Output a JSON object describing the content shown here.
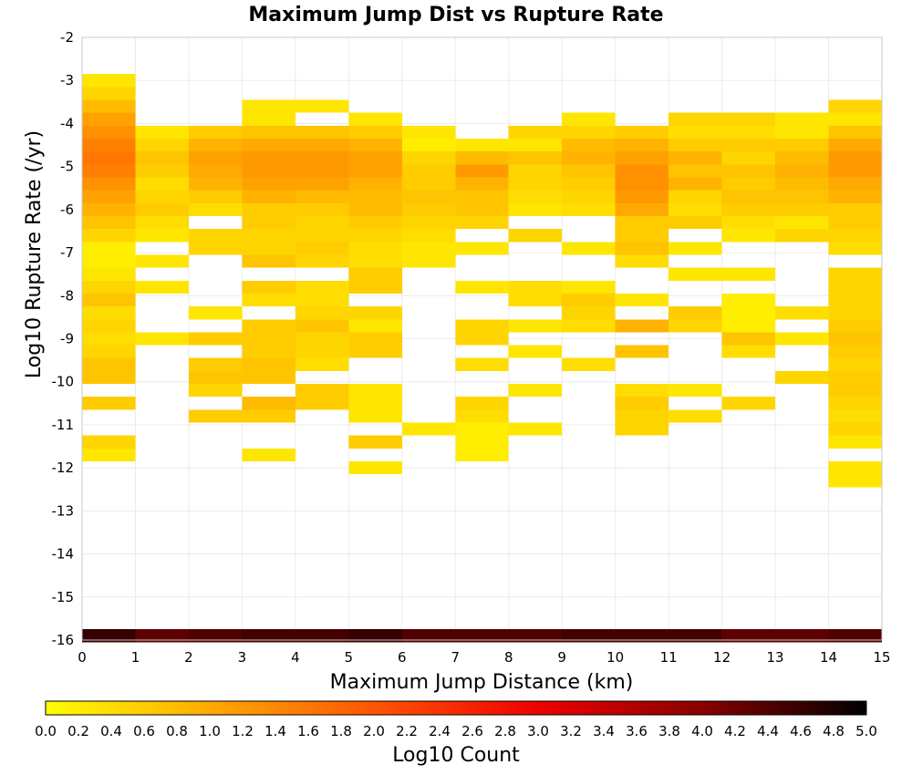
{
  "chart_data": {
    "type": "heatmap",
    "title": "Maximum Jump Dist vs Rupture Rate",
    "xlabel": "Maximum Jump Distance (km)",
    "ylabel": "Log10 Rupture Rate (/yr)",
    "xlim": [
      0,
      15
    ],
    "ylim": [
      -16,
      -2
    ],
    "x_ticks": [
      "0",
      "1",
      "2",
      "3",
      "4",
      "5",
      "6",
      "7",
      "8",
      "9",
      "10",
      "11",
      "12",
      "13",
      "14",
      "15"
    ],
    "y_ticks": [
      "-2",
      "-3",
      "-4",
      "-5",
      "-6",
      "-7",
      "-8",
      "-9",
      "-10",
      "-11",
      "-12",
      "-13",
      "-14",
      "-15",
      "-16"
    ],
    "grid": true,
    "bin_width_x": 1,
    "bin_height_y": 0.3,
    "colorbar": {
      "label": "Log10 Count",
      "range": [
        0,
        5
      ],
      "tick_labels": [
        "0.0",
        "0.2",
        "0.4",
        "0.6",
        "0.8",
        "1.0",
        "1.2",
        "1.4",
        "1.6",
        "1.8",
        "2.0",
        "2.2",
        "2.4",
        "2.6",
        "2.8",
        "3.0",
        "3.2",
        "3.4",
        "3.6",
        "3.8",
        "4.0",
        "4.2",
        "4.4",
        "4.6",
        "4.8",
        "5.0"
      ],
      "colors": [
        "#ffff00",
        "#ffaa00",
        "#ff5500",
        "#ee0000",
        "#880000",
        "#000000"
      ]
    },
    "columns": [
      {
        "x": 0,
        "cells": [
          [
            -3.0,
            0.3
          ],
          [
            -3.3,
            0.5
          ],
          [
            -3.6,
            0.8
          ],
          [
            -3.9,
            1.1
          ],
          [
            -4.2,
            1.3
          ],
          [
            -4.5,
            1.5
          ],
          [
            -4.8,
            1.6
          ],
          [
            -5.1,
            1.5
          ],
          [
            -5.4,
            1.3
          ],
          [
            -5.7,
            1.1
          ],
          [
            -6.0,
            0.9
          ],
          [
            -6.3,
            0.7
          ],
          [
            -6.6,
            0.5
          ],
          [
            -6.9,
            0.2
          ],
          [
            -7.2,
            0.2
          ],
          [
            -7.5,
            0.3
          ],
          [
            -7.8,
            0.5
          ],
          [
            -8.1,
            0.7
          ],
          [
            -8.4,
            0.4
          ],
          [
            -8.7,
            0.5
          ],
          [
            -9.0,
            0.4
          ],
          [
            -9.3,
            0.5
          ],
          [
            -9.6,
            0.7
          ],
          [
            -9.9,
            0.7
          ],
          [
            -10.5,
            0.6
          ],
          [
            -11.4,
            0.5
          ],
          [
            -11.7,
            0.3
          ],
          [
            -15.9,
            4.6
          ]
        ]
      },
      {
        "x": 1,
        "cells": [
          [
            -4.2,
            0.3
          ],
          [
            -4.5,
            0.5
          ],
          [
            -4.8,
            0.7
          ],
          [
            -5.1,
            0.6
          ],
          [
            -5.4,
            0.4
          ],
          [
            -5.7,
            0.5
          ],
          [
            -6.0,
            0.6
          ],
          [
            -6.3,
            0.4
          ],
          [
            -6.6,
            0.3
          ],
          [
            -7.2,
            0.3
          ],
          [
            -7.8,
            0.3
          ],
          [
            -9.0,
            0.3
          ],
          [
            -15.9,
            4.3
          ]
        ]
      },
      {
        "x": 2,
        "cells": [
          [
            -4.2,
            0.6
          ],
          [
            -4.5,
            0.9
          ],
          [
            -4.8,
            1.1
          ],
          [
            -5.1,
            1.0
          ],
          [
            -5.4,
            0.9
          ],
          [
            -5.7,
            0.6
          ],
          [
            -6.0,
            0.4
          ],
          [
            -6.6,
            0.5
          ],
          [
            -6.9,
            0.5
          ],
          [
            -8.4,
            0.3
          ],
          [
            -9.0,
            0.6
          ],
          [
            -9.6,
            0.6
          ],
          [
            -9.9,
            0.7
          ],
          [
            -10.2,
            0.5
          ],
          [
            -10.8,
            0.6
          ],
          [
            -15.9,
            4.4
          ]
        ]
      },
      {
        "x": 3,
        "cells": [
          [
            -3.6,
            0.3
          ],
          [
            -3.9,
            0.3
          ],
          [
            -4.2,
            0.7
          ],
          [
            -4.5,
            1.0
          ],
          [
            -4.8,
            1.2
          ],
          [
            -5.1,
            1.2
          ],
          [
            -5.4,
            1.1
          ],
          [
            -5.7,
            0.9
          ],
          [
            -6.0,
            0.6
          ],
          [
            -6.3,
            0.6
          ],
          [
            -6.6,
            0.5
          ],
          [
            -6.9,
            0.5
          ],
          [
            -7.2,
            0.7
          ],
          [
            -7.8,
            0.6
          ],
          [
            -8.1,
            0.4
          ],
          [
            -8.7,
            0.6
          ],
          [
            -9.0,
            0.6
          ],
          [
            -9.3,
            0.6
          ],
          [
            -9.6,
            0.7
          ],
          [
            -9.9,
            0.7
          ],
          [
            -10.5,
            0.8
          ],
          [
            -10.8,
            0.6
          ],
          [
            -11.7,
            0.3
          ],
          [
            -15.9,
            4.5
          ]
        ]
      },
      {
        "x": 4,
        "cells": [
          [
            -3.6,
            0.3
          ],
          [
            -4.2,
            0.7
          ],
          [
            -4.5,
            1.0
          ],
          [
            -4.8,
            1.2
          ],
          [
            -5.1,
            1.2
          ],
          [
            -5.4,
            1.1
          ],
          [
            -5.7,
            0.8
          ],
          [
            -6.0,
            0.6
          ],
          [
            -6.3,
            0.5
          ],
          [
            -6.6,
            0.5
          ],
          [
            -6.9,
            0.6
          ],
          [
            -7.2,
            0.5
          ],
          [
            -7.8,
            0.4
          ],
          [
            -8.1,
            0.4
          ],
          [
            -8.4,
            0.5
          ],
          [
            -8.7,
            0.7
          ],
          [
            -9.0,
            0.5
          ],
          [
            -9.3,
            0.5
          ],
          [
            -9.6,
            0.4
          ],
          [
            -10.2,
            0.6
          ],
          [
            -10.5,
            0.6
          ],
          [
            -15.9,
            4.5
          ]
        ]
      },
      {
        "x": 5,
        "cells": [
          [
            -3.9,
            0.3
          ],
          [
            -4.2,
            0.6
          ],
          [
            -4.5,
            0.9
          ],
          [
            -4.8,
            1.1
          ],
          [
            -5.1,
            1.1
          ],
          [
            -5.4,
            0.9
          ],
          [
            -5.7,
            0.8
          ],
          [
            -6.0,
            0.8
          ],
          [
            -6.3,
            0.6
          ],
          [
            -6.6,
            0.5
          ],
          [
            -6.9,
            0.4
          ],
          [
            -7.2,
            0.4
          ],
          [
            -7.5,
            0.6
          ],
          [
            -7.8,
            0.6
          ],
          [
            -8.4,
            0.5
          ],
          [
            -8.7,
            0.3
          ],
          [
            -9.0,
            0.6
          ],
          [
            -9.3,
            0.6
          ],
          [
            -10.2,
            0.3
          ],
          [
            -10.5,
            0.3
          ],
          [
            -10.8,
            0.3
          ],
          [
            -11.4,
            0.6
          ],
          [
            -12.0,
            0.3
          ],
          [
            -15.9,
            4.6
          ]
        ]
      },
      {
        "x": 6,
        "cells": [
          [
            -4.2,
            0.3
          ],
          [
            -4.5,
            0.2
          ],
          [
            -4.8,
            0.5
          ],
          [
            -5.1,
            0.6
          ],
          [
            -5.4,
            0.6
          ],
          [
            -5.7,
            0.7
          ],
          [
            -6.0,
            0.6
          ],
          [
            -6.3,
            0.5
          ],
          [
            -6.6,
            0.4
          ],
          [
            -6.9,
            0.3
          ],
          [
            -7.2,
            0.3
          ],
          [
            -11.1,
            0.3
          ],
          [
            -15.9,
            4.4
          ]
        ]
      },
      {
        "x": 7,
        "cells": [
          [
            -4.5,
            0.3
          ],
          [
            -4.8,
            0.8
          ],
          [
            -5.1,
            1.2
          ],
          [
            -5.4,
            0.9
          ],
          [
            -5.7,
            0.7
          ],
          [
            -6.0,
            0.7
          ],
          [
            -6.3,
            0.5
          ],
          [
            -6.9,
            0.3
          ],
          [
            -7.8,
            0.3
          ],
          [
            -8.7,
            0.5
          ],
          [
            -9.0,
            0.5
          ],
          [
            -9.6,
            0.4
          ],
          [
            -10.5,
            0.5
          ],
          [
            -10.8,
            0.4
          ],
          [
            -11.1,
            0.2
          ],
          [
            -11.4,
            0.2
          ],
          [
            -11.7,
            0.2
          ],
          [
            -15.9,
            4.4
          ]
        ]
      },
      {
        "x": 8,
        "cells": [
          [
            -4.2,
            0.5
          ],
          [
            -4.5,
            0.3
          ],
          [
            -4.8,
            0.7
          ],
          [
            -5.1,
            0.5
          ],
          [
            -5.4,
            0.5
          ],
          [
            -5.7,
            0.4
          ],
          [
            -6.0,
            0.3
          ],
          [
            -6.6,
            0.5
          ],
          [
            -7.8,
            0.4
          ],
          [
            -8.1,
            0.4
          ],
          [
            -8.7,
            0.3
          ],
          [
            -9.3,
            0.3
          ],
          [
            -10.2,
            0.3
          ],
          [
            -11.1,
            0.3
          ],
          [
            -15.9,
            4.4
          ]
        ]
      },
      {
        "x": 9,
        "cells": [
          [
            -3.9,
            0.3
          ],
          [
            -4.2,
            0.5
          ],
          [
            -4.5,
            0.8
          ],
          [
            -4.8,
            0.9
          ],
          [
            -5.1,
            0.7
          ],
          [
            -5.4,
            0.6
          ],
          [
            -5.7,
            0.5
          ],
          [
            -6.0,
            0.4
          ],
          [
            -6.9,
            0.3
          ],
          [
            -7.8,
            0.3
          ],
          [
            -8.1,
            0.6
          ],
          [
            -8.4,
            0.5
          ],
          [
            -8.7,
            0.4
          ],
          [
            -9.6,
            0.4
          ],
          [
            -15.9,
            4.5
          ]
        ]
      },
      {
        "x": 10,
        "cells": [
          [
            -4.2,
            0.6
          ],
          [
            -4.5,
            0.9
          ],
          [
            -4.8,
            1.1
          ],
          [
            -5.1,
            1.3
          ],
          [
            -5.4,
            1.3
          ],
          [
            -5.7,
            1.2
          ],
          [
            -6.0,
            1.0
          ],
          [
            -6.3,
            0.6
          ],
          [
            -6.6,
            0.6
          ],
          [
            -6.9,
            0.7
          ],
          [
            -7.2,
            0.4
          ],
          [
            -8.1,
            0.3
          ],
          [
            -8.7,
            0.9
          ],
          [
            -9.3,
            0.7
          ],
          [
            -10.2,
            0.4
          ],
          [
            -10.5,
            0.6
          ],
          [
            -10.8,
            0.5
          ],
          [
            -11.1,
            0.5
          ],
          [
            -15.9,
            4.5
          ]
        ]
      },
      {
        "x": 11,
        "cells": [
          [
            -3.9,
            0.5
          ],
          [
            -4.2,
            0.4
          ],
          [
            -4.5,
            0.6
          ],
          [
            -4.8,
            0.9
          ],
          [
            -5.1,
            0.7
          ],
          [
            -5.4,
            0.9
          ],
          [
            -5.7,
            0.5
          ],
          [
            -6.0,
            0.4
          ],
          [
            -6.3,
            0.6
          ],
          [
            -6.9,
            0.3
          ],
          [
            -7.5,
            0.3
          ],
          [
            -8.4,
            0.6
          ],
          [
            -8.7,
            0.5
          ],
          [
            -10.2,
            0.3
          ],
          [
            -10.8,
            0.4
          ],
          [
            -15.9,
            4.5
          ]
        ]
      },
      {
        "x": 12,
        "cells": [
          [
            -3.9,
            0.5
          ],
          [
            -4.2,
            0.4
          ],
          [
            -4.5,
            0.6
          ],
          [
            -4.8,
            0.5
          ],
          [
            -5.1,
            0.7
          ],
          [
            -5.4,
            0.6
          ],
          [
            -5.7,
            0.7
          ],
          [
            -6.0,
            0.6
          ],
          [
            -6.3,
            0.4
          ],
          [
            -6.6,
            0.3
          ],
          [
            -7.5,
            0.3
          ],
          [
            -8.1,
            0.2
          ],
          [
            -8.4,
            0.2
          ],
          [
            -8.7,
            0.2
          ],
          [
            -9.0,
            0.7
          ],
          [
            -9.3,
            0.4
          ],
          [
            -10.5,
            0.5
          ],
          [
            -15.9,
            4.3
          ]
        ]
      },
      {
        "x": 13,
        "cells": [
          [
            -3.9,
            0.3
          ],
          [
            -4.2,
            0.3
          ],
          [
            -4.5,
            0.6
          ],
          [
            -4.8,
            0.8
          ],
          [
            -5.1,
            0.9
          ],
          [
            -5.4,
            0.8
          ],
          [
            -5.7,
            0.7
          ],
          [
            -6.0,
            0.6
          ],
          [
            -6.3,
            0.3
          ],
          [
            -6.6,
            0.5
          ],
          [
            -8.4,
            0.4
          ],
          [
            -9.0,
            0.3
          ],
          [
            -9.9,
            0.5
          ],
          [
            -15.9,
            4.3
          ]
        ]
      },
      {
        "x": 14,
        "cells": [
          [
            -3.6,
            0.5
          ],
          [
            -3.9,
            0.3
          ],
          [
            -4.2,
            0.7
          ],
          [
            -4.5,
            1.0
          ],
          [
            -4.8,
            1.2
          ],
          [
            -5.1,
            1.2
          ],
          [
            -5.4,
            1.0
          ],
          [
            -5.7,
            0.9
          ],
          [
            -6.0,
            0.6
          ],
          [
            -6.3,
            0.6
          ],
          [
            -6.6,
            0.5
          ],
          [
            -6.9,
            0.4
          ],
          [
            -7.5,
            0.5
          ],
          [
            -7.8,
            0.5
          ],
          [
            -8.1,
            0.5
          ],
          [
            -8.4,
            0.5
          ],
          [
            -8.7,
            0.6
          ],
          [
            -9.0,
            0.7
          ],
          [
            -9.3,
            0.6
          ],
          [
            -9.6,
            0.5
          ],
          [
            -9.9,
            0.6
          ],
          [
            -10.2,
            0.6
          ],
          [
            -10.5,
            0.5
          ],
          [
            -10.8,
            0.4
          ],
          [
            -11.1,
            0.5
          ],
          [
            -11.4,
            0.3
          ],
          [
            -12.0,
            0.3
          ],
          [
            -12.3,
            0.3
          ],
          [
            -15.9,
            4.4
          ]
        ]
      }
    ]
  }
}
